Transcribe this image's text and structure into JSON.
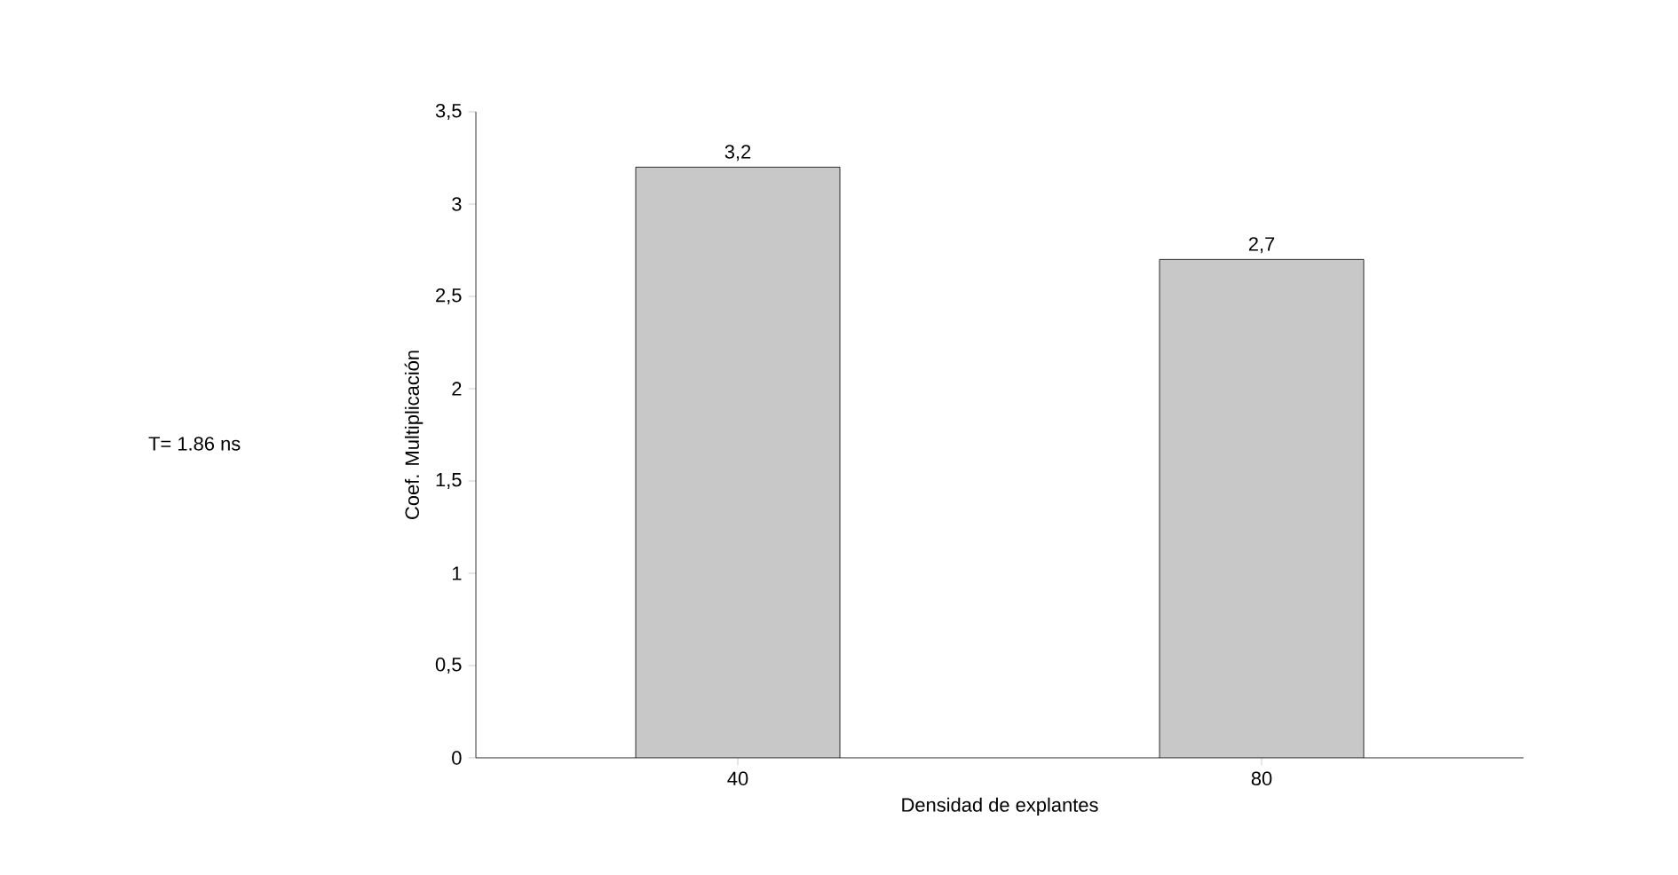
{
  "chart_data": {
    "type": "bar",
    "categories": [
      "40",
      "80"
    ],
    "values": [
      3.2,
      2.7
    ],
    "value_labels": [
      "3,2",
      "2,7"
    ],
    "color": "#c8c8c8",
    "xlabel": "Densidad de explantes",
    "ylabel": "Coef. Multiplicación",
    "ylim": [
      0,
      3.5
    ],
    "yticks": [
      0,
      {
        "value": 0.5,
        "label": "0,5"
      },
      1,
      {
        "value": 1.5,
        "label": "1,5"
      },
      2,
      {
        "value": 2.5,
        "label": "2,5"
      },
      3,
      {
        "value": 3.5,
        "label": "3,5"
      }
    ],
    "annotations": [
      "T= 1.86 ns"
    ],
    "grid": false
  }
}
